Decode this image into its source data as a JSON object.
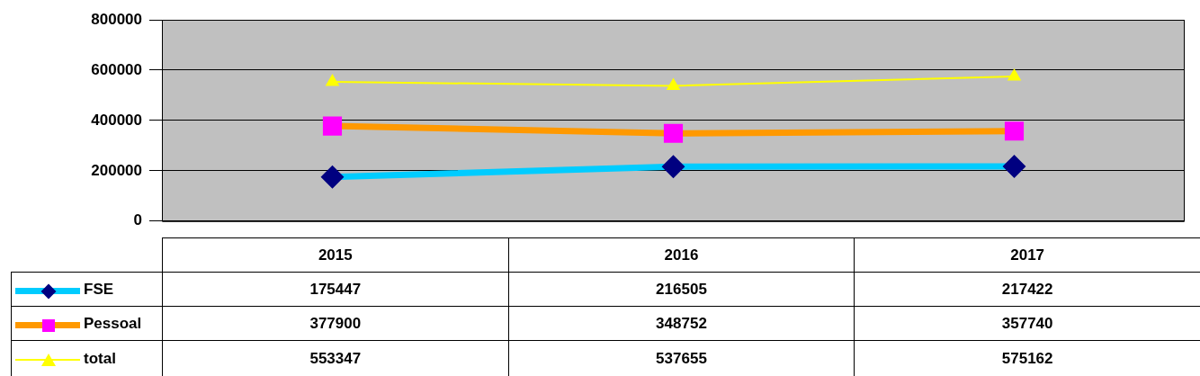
{
  "chart_data": {
    "type": "line",
    "categories": [
      "2015",
      "2016",
      "2017"
    ],
    "series": [
      {
        "name": "FSE",
        "color": "#00ccff",
        "colors": [
          "#000080",
          "#000080",
          "#000080"
        ],
        "marker": "diamond",
        "values": [
          175447,
          216505,
          217422
        ]
      },
      {
        "name": "Pessoal",
        "color": "#ff9900",
        "colors": [
          "#ff00ff",
          "#ff00ff",
          "#ff00ff"
        ],
        "marker": "square",
        "values": [
          377900,
          348752,
          357740
        ]
      },
      {
        "name": "total",
        "color": "#ffff00",
        "colors": [
          "#ffff00",
          "#ffff00",
          "#ffff00"
        ],
        "marker": "triangle",
        "values": [
          553347,
          537655,
          575162
        ]
      }
    ],
    "ylim": [
      0,
      800000
    ],
    "yticks": [
      0,
      200000,
      400000,
      600000,
      800000
    ],
    "grid": "y",
    "legend": "bottom left",
    "data_labels": true
  }
}
